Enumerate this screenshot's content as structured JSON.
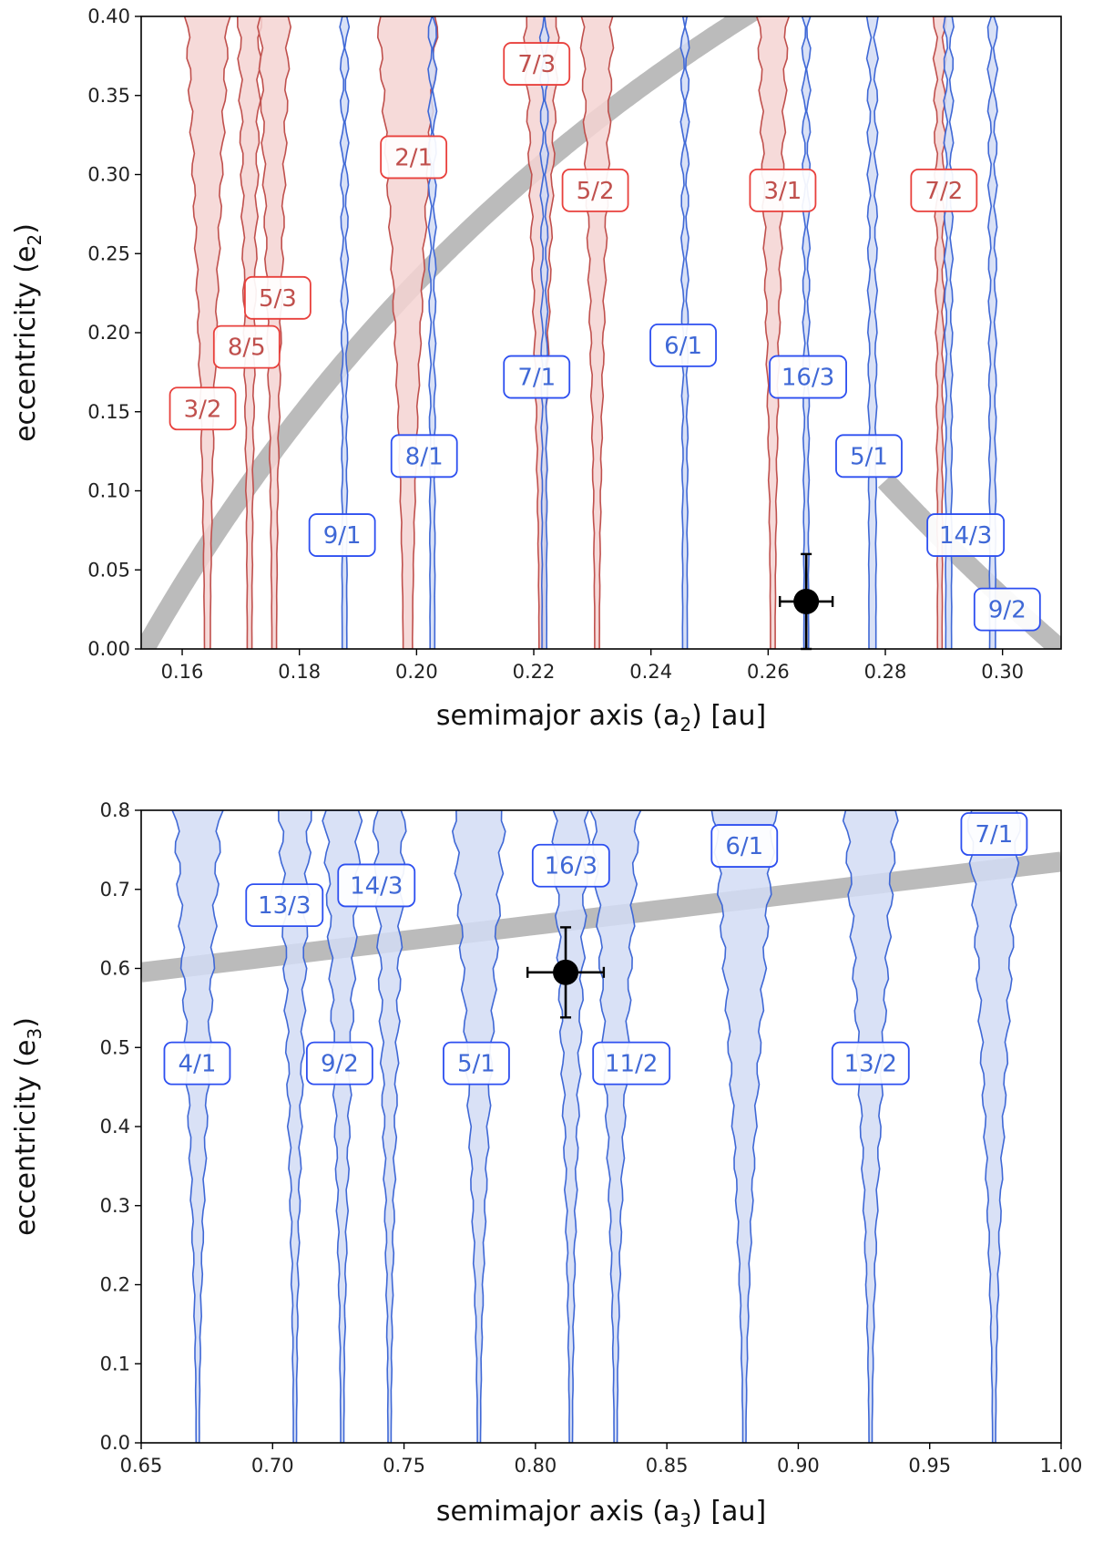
{
  "chart_data": [
    {
      "type": "scatter",
      "panel": "top",
      "xlabel_main": "semimajor axis (a",
      "xlabel_sub": "2",
      "xlabel_tail": ") [au]",
      "ylabel_main": "eccentricity (e",
      "ylabel_sub": "2",
      "ylabel_tail": ")",
      "xlim": [
        0.153,
        0.31
      ],
      "ylim": [
        0.0,
        0.4
      ],
      "xticks": [
        0.16,
        0.18,
        0.2,
        0.22,
        0.24,
        0.26,
        0.28,
        0.3
      ],
      "xtick_labels": [
        "0.16",
        "0.18",
        "0.20",
        "0.22",
        "0.24",
        "0.26",
        "0.28",
        "0.30"
      ],
      "yticks": [
        0.0,
        0.05,
        0.1,
        0.15,
        0.2,
        0.25,
        0.3,
        0.35,
        0.4
      ],
      "ytick_labels": [
        "0.00",
        "0.05",
        "0.10",
        "0.15",
        "0.20",
        "0.25",
        "0.30",
        "0.35",
        "0.40"
      ],
      "colors": {
        "red_line": "#c0504d",
        "red_fill": "#f5d3d2",
        "red_box": "#e8403c",
        "blue_line": "#3f68d6",
        "blue_fill": "#d2dcf5",
        "blue_box": "#2d4ff0",
        "gray": "#bbbbbb",
        "marker": "#000000"
      },
      "resonances": [
        {
          "label": "3/2",
          "color": "red",
          "a": 0.1643,
          "w_top": 0.0035,
          "w_bot": 0.0005,
          "label_x": 0.1635,
          "label_y": 0.152
        },
        {
          "label": "8/5",
          "color": "red",
          "a": 0.1715,
          "w_top": 0.0018,
          "w_bot": 0.0004,
          "label_x": 0.171,
          "label_y": 0.191
        },
        {
          "label": "5/3",
          "color": "red",
          "a": 0.1757,
          "w_top": 0.0025,
          "w_bot": 0.0004,
          "label_x": 0.1763,
          "label_y": 0.222
        },
        {
          "label": "2/1",
          "color": "red",
          "a": 0.1985,
          "w_top": 0.005,
          "w_bot": 0.0008,
          "label_x": 0.1995,
          "label_y": 0.311
        },
        {
          "label": "7/3",
          "color": "red",
          "a": 0.2213,
          "w_top": 0.0028,
          "w_bot": 0.0004,
          "label_x": 0.2205,
          "label_y": 0.37
        },
        {
          "label": "5/2",
          "color": "red",
          "a": 0.2308,
          "w_top": 0.0026,
          "w_bot": 0.0004,
          "label_x": 0.2305,
          "label_y": 0.29
        },
        {
          "label": "3/1",
          "color": "red",
          "a": 0.2608,
          "w_top": 0.0024,
          "w_bot": 0.0004,
          "label_x": 0.2625,
          "label_y": 0.29
        },
        {
          "label": "7/2",
          "color": "red",
          "a": 0.2893,
          "w_top": 0.0008,
          "w_bot": 0.0004,
          "label_x": 0.29,
          "label_y": 0.29
        },
        {
          "label": "9/1",
          "color": "blue",
          "a": 0.1877,
          "w_top": 0.0004,
          "w_bot": 0.0004,
          "label_x": 0.1873,
          "label_y": 0.072
        },
        {
          "label": "8/1",
          "color": "blue",
          "a": 0.2027,
          "w_top": 0.0004,
          "w_bot": 0.0004,
          "label_x": 0.2013,
          "label_y": 0.122
        },
        {
          "label": "7/1",
          "color": "blue",
          "a": 0.2218,
          "w_top": 0.0004,
          "w_bot": 0.0004,
          "label_x": 0.2205,
          "label_y": 0.172
        },
        {
          "label": "6/1",
          "color": "blue",
          "a": 0.2458,
          "w_top": 0.0004,
          "w_bot": 0.0004,
          "label_x": 0.2455,
          "label_y": 0.192
        },
        {
          "label": "16/3",
          "color": "blue",
          "a": 0.2665,
          "w_top": 0.0004,
          "w_bot": 0.0004,
          "label_x": 0.2668,
          "label_y": 0.172
        },
        {
          "label": "5/1",
          "color": "blue",
          "a": 0.2778,
          "w_top": 0.0006,
          "w_bot": 0.0006,
          "label_x": 0.2772,
          "label_y": 0.122
        },
        {
          "label": "14/3",
          "color": "blue",
          "a": 0.2908,
          "w_top": 0.0005,
          "w_bot": 0.0005,
          "label_x": 0.2937,
          "label_y": 0.072
        },
        {
          "label": "9/2",
          "color": "blue",
          "a": 0.2983,
          "w_top": 0.0005,
          "w_bot": 0.0005,
          "label_x": 0.3008,
          "label_y": 0.025
        }
      ],
      "curves": [
        {
          "name": "band-rising",
          "a_ref": 0.1536,
          "ecc_formula": "1 - a_ref/a",
          "x_range": [
            0.153,
            0.26
          ]
        },
        {
          "name": "band-falling",
          "a_ref": 0.3098,
          "ecc_formula": "a_ref/a - 1",
          "x_range": [
            0.28,
            0.31
          ]
        }
      ],
      "point": {
        "x": 0.2665,
        "y": 0.03,
        "xerr": 0.0045,
        "yerr": 0.03
      }
    },
    {
      "type": "scatter",
      "panel": "bottom",
      "xlabel_main": "semimajor axis (a",
      "xlabel_sub": "3",
      "xlabel_tail": ") [au]",
      "ylabel_main": "eccentricity (e",
      "ylabel_sub": "3",
      "ylabel_tail": ")",
      "xlim": [
        0.65,
        1.0
      ],
      "ylim": [
        0.0,
        0.8
      ],
      "xticks": [
        0.65,
        0.7,
        0.75,
        0.8,
        0.85,
        0.9,
        0.95,
        1.0
      ],
      "xtick_labels": [
        "0.65",
        "0.70",
        "0.75",
        "0.80",
        "0.85",
        "0.90",
        "0.95",
        "1.00"
      ],
      "yticks": [
        0.0,
        0.1,
        0.2,
        0.3,
        0.4,
        0.5,
        0.6,
        0.7,
        0.8
      ],
      "ytick_labels": [
        "0.0",
        "0.1",
        "0.2",
        "0.3",
        "0.4",
        "0.5",
        "0.6",
        "0.7",
        "0.8"
      ],
      "colors": {
        "blue_line": "#3f68d6",
        "blue_fill": "#d2dcf5",
        "blue_box": "#2d4ff0",
        "gray": "#bbbbbb",
        "marker": "#000000"
      },
      "resonances": [
        {
          "label": "4/1",
          "a": 0.6715,
          "w_top": 0.0085,
          "w_bot": 0.0006,
          "label_x": 0.6713,
          "label_y": 0.48
        },
        {
          "label": "13/3",
          "a": 0.7085,
          "w_top": 0.0055,
          "w_bot": 0.0006,
          "label_x": 0.7045,
          "label_y": 0.68
        },
        {
          "label": "9/2",
          "a": 0.7265,
          "w_top": 0.0065,
          "w_bot": 0.0006,
          "label_x": 0.7255,
          "label_y": 0.48
        },
        {
          "label": "14/3",
          "a": 0.7445,
          "w_top": 0.0055,
          "w_bot": 0.0006,
          "label_x": 0.7395,
          "label_y": 0.705
        },
        {
          "label": "5/1",
          "a": 0.7785,
          "w_top": 0.0095,
          "w_bot": 0.0006,
          "label_x": 0.7775,
          "label_y": 0.48
        },
        {
          "label": "16/3",
          "a": 0.8135,
          "w_top": 0.0065,
          "w_bot": 0.0006,
          "label_x": 0.8135,
          "label_y": 0.73
        },
        {
          "label": "11/2",
          "a": 0.8305,
          "w_top": 0.0085,
          "w_bot": 0.0006,
          "label_x": 0.8365,
          "label_y": 0.48
        },
        {
          "label": "6/1",
          "a": 0.8795,
          "w_top": 0.0115,
          "w_bot": 0.0006,
          "label_x": 0.8795,
          "label_y": 0.755
        },
        {
          "label": "13/2",
          "a": 0.9275,
          "w_top": 0.0095,
          "w_bot": 0.0006,
          "label_x": 0.9275,
          "label_y": 0.48
        },
        {
          "label": "7/1",
          "a": 0.9745,
          "w_top": 0.0095,
          "w_bot": 0.0006,
          "label_x": 0.9745,
          "label_y": 0.77
        }
      ],
      "curves": [
        {
          "name": "band-rising",
          "formula": "linear",
          "e_at_0_65": 0.595,
          "e_at_1_00": 0.735
        }
      ],
      "point": {
        "x": 0.8115,
        "y": 0.595,
        "xerr": 0.0145,
        "yerr": 0.057
      }
    }
  ]
}
